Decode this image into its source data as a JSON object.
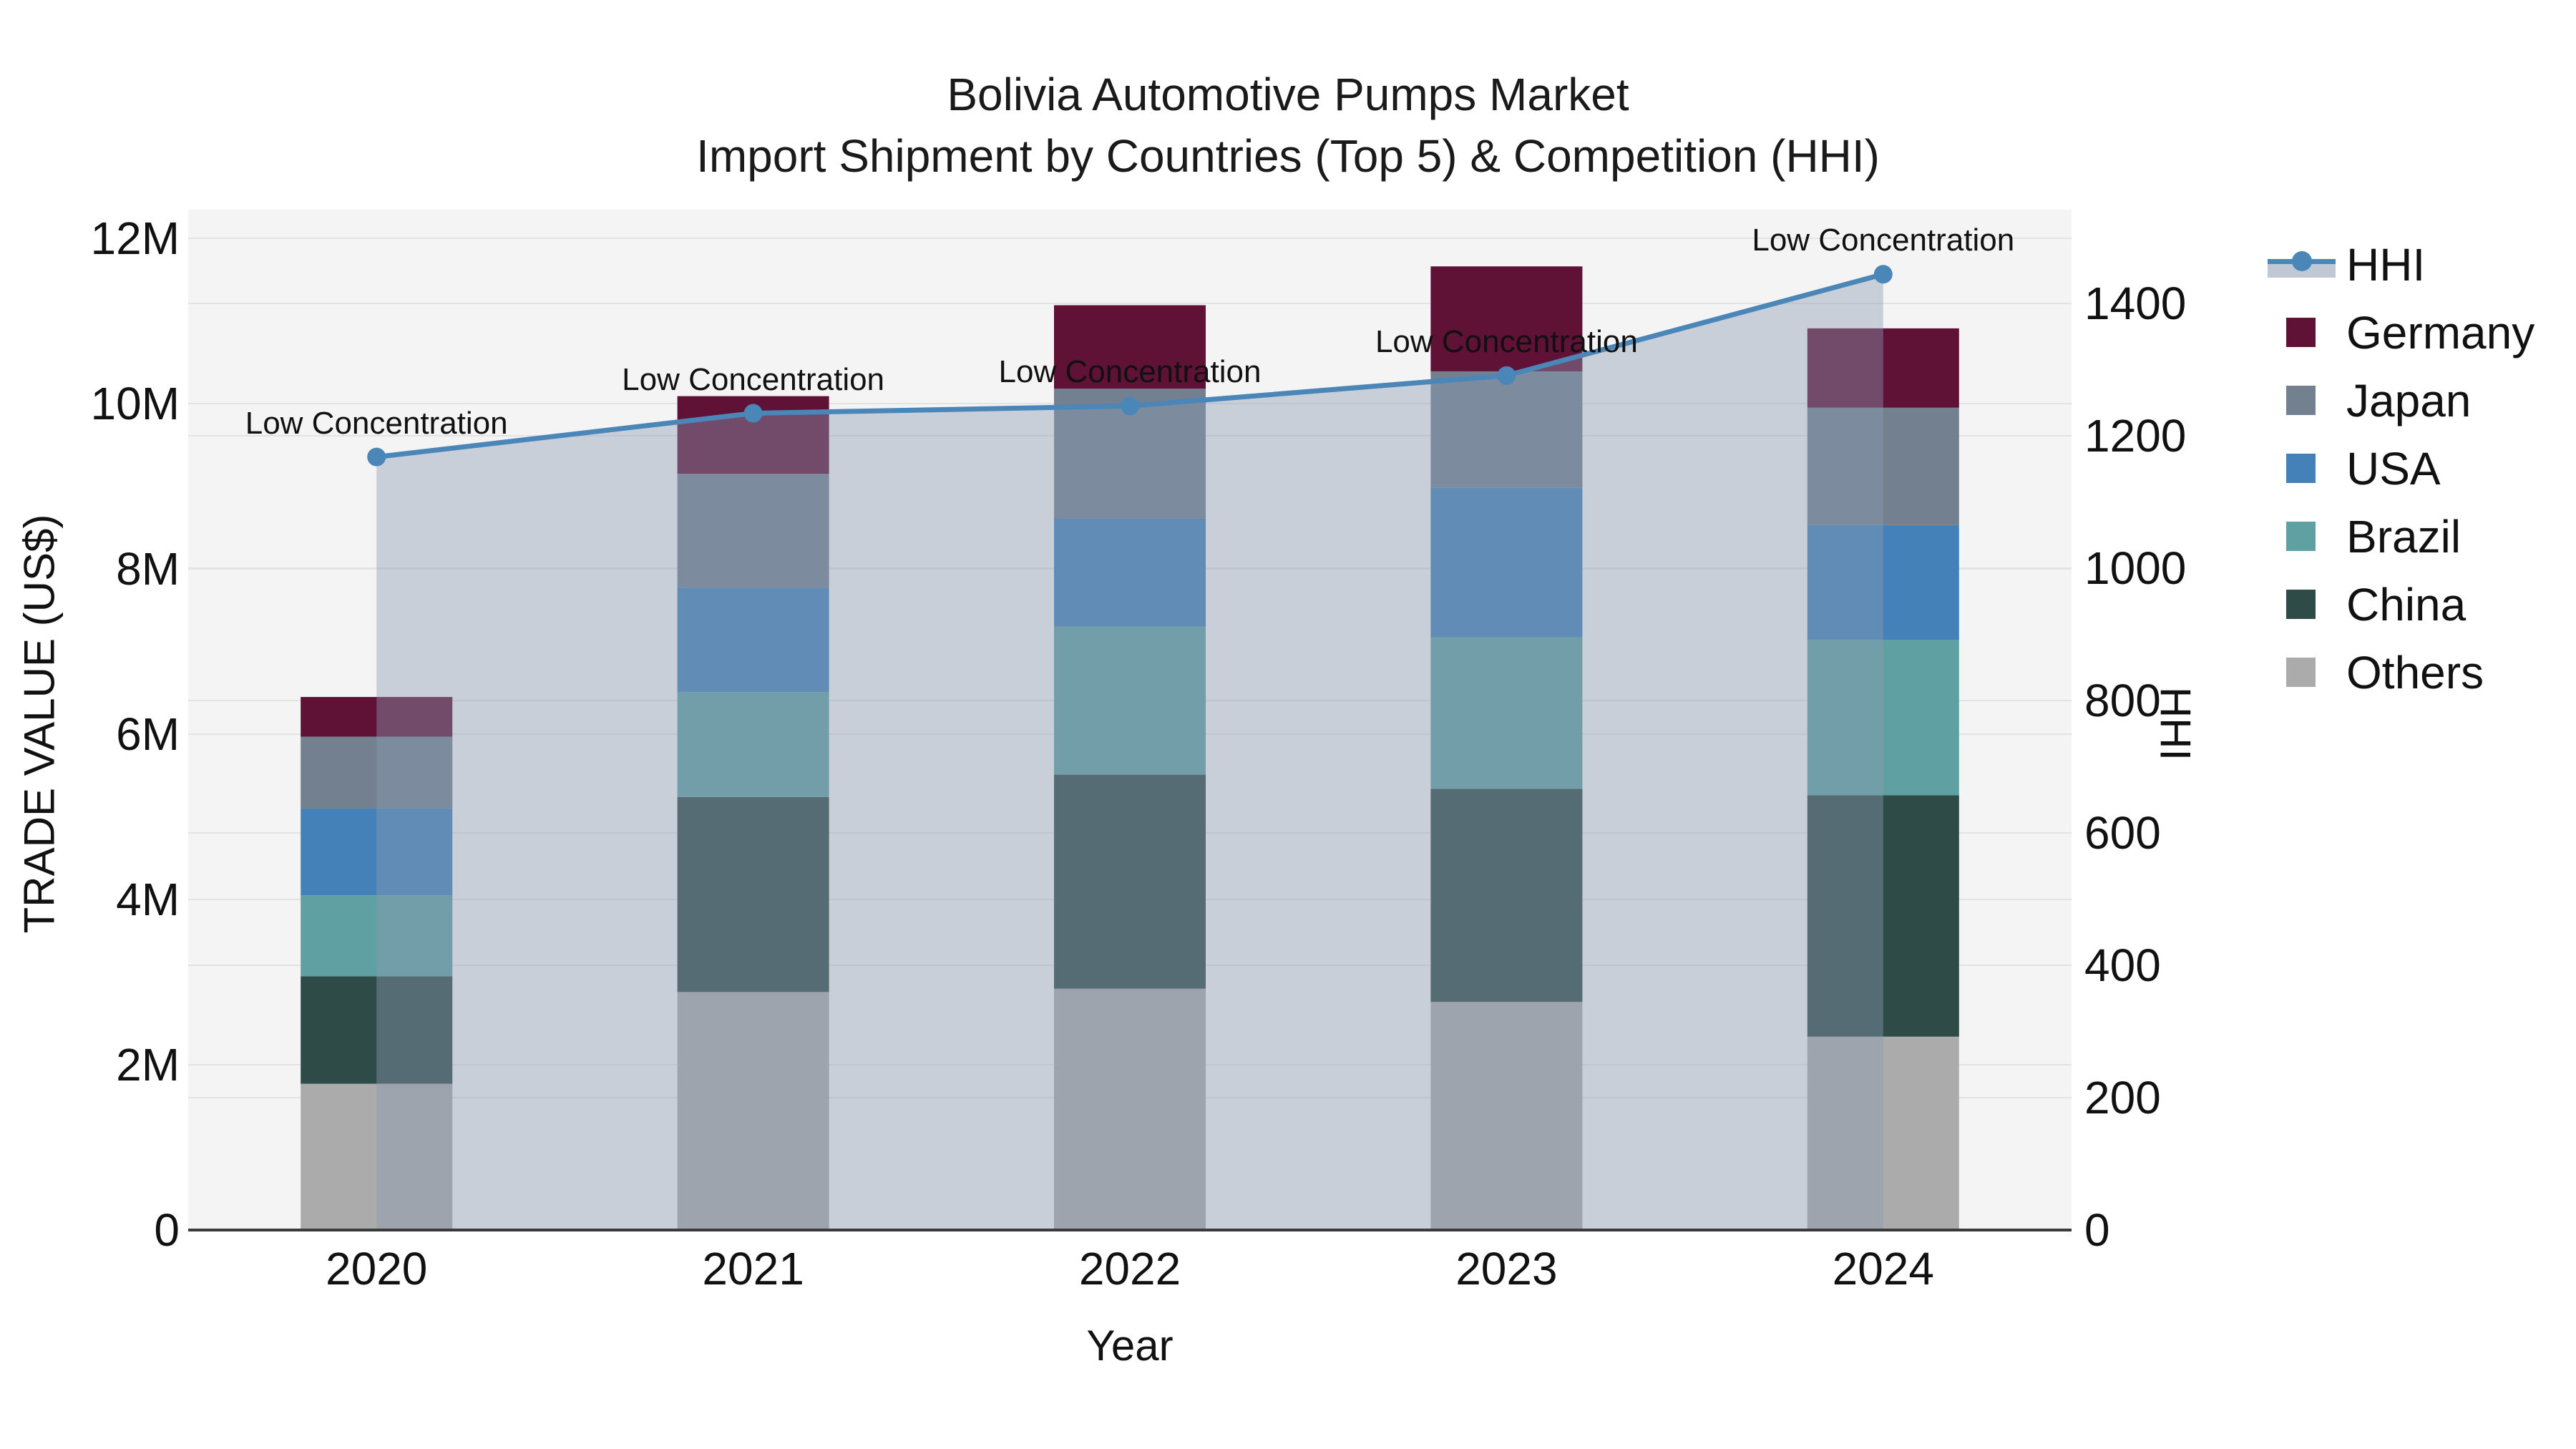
{
  "title": {
    "line1": "Bolivia Automotive Pumps Market",
    "line2": "Import Shipment by Countries (Top 5) & Competition (HHI)"
  },
  "axes": {
    "x_title": "Year",
    "y_left_title": "TRADE VALUE (US$)",
    "y_right_title": "HHI",
    "y_left_ticks": [
      {
        "label": "0",
        "value": 0
      },
      {
        "label": "2M",
        "value": 2000000
      },
      {
        "label": "4M",
        "value": 4000000
      },
      {
        "label": "6M",
        "value": 6000000
      },
      {
        "label": "8M",
        "value": 8000000
      },
      {
        "label": "10M",
        "value": 10000000
      },
      {
        "label": "12M",
        "value": 12000000
      }
    ],
    "y_right_ticks": [
      {
        "label": "0",
        "value": 0
      },
      {
        "label": "200",
        "value": 200
      },
      {
        "label": "400",
        "value": 400
      },
      {
        "label": "600",
        "value": 600
      },
      {
        "label": "800",
        "value": 800
      },
      {
        "label": "1000",
        "value": 1000
      },
      {
        "label": "1200",
        "value": 1200
      },
      {
        "label": "1400",
        "value": 1400
      }
    ]
  },
  "legend": {
    "items": [
      {
        "label": "HHI",
        "type": "line",
        "color": "#4A86B8"
      },
      {
        "label": "Germany",
        "type": "swatch",
        "color": "#5F1136"
      },
      {
        "label": "Japan",
        "type": "swatch",
        "color": "#72808F"
      },
      {
        "label": "USA",
        "type": "swatch",
        "color": "#4381B8"
      },
      {
        "label": "Brazil",
        "type": "swatch",
        "color": "#5FA0A2"
      },
      {
        "label": "China",
        "type": "swatch",
        "color": "#2E4B47"
      },
      {
        "label": "Others",
        "type": "swatch",
        "color": "#ABABAB"
      }
    ]
  },
  "chart_data": {
    "type": "bar",
    "subtype": "stacked-bars-with-line",
    "title": "Bolivia Automotive Pumps Market — Import Shipment by Countries (Top 5) & Competition (HHI)",
    "xlabel": "Year",
    "ylabel": "TRADE VALUE (US$)",
    "y2label": "HHI",
    "ylim": [
      0,
      12000000
    ],
    "y2lim": [
      0,
      1400
    ],
    "grid": true,
    "legend_position": "right",
    "categories": [
      "2020",
      "2021",
      "2022",
      "2023",
      "2024"
    ],
    "series": [
      {
        "name": "Others",
        "color": "#ABABAB",
        "values": [
          1770000,
          2880000,
          2920000,
          2760000,
          2340000
        ]
      },
      {
        "name": "China",
        "color": "#2E4B47",
        "values": [
          1300000,
          2360000,
          2590000,
          2580000,
          2920000
        ]
      },
      {
        "name": "Brazil",
        "color": "#5FA0A2",
        "values": [
          980000,
          1270000,
          1790000,
          1830000,
          1880000
        ]
      },
      {
        "name": "USA",
        "color": "#4381B8",
        "values": [
          1050000,
          1260000,
          1310000,
          1810000,
          1390000
        ]
      },
      {
        "name": "Japan",
        "color": "#72808F",
        "values": [
          870000,
          1380000,
          1570000,
          1410000,
          1420000
        ]
      },
      {
        "name": "Germany",
        "color": "#5F1136",
        "values": [
          480000,
          940000,
          1010000,
          1270000,
          960000
        ]
      }
    ],
    "bar_totals": [
      6450000,
      10090000,
      11190000,
      11660000,
      10910000
    ],
    "line_series": {
      "name": "HHI",
      "axis": "right",
      "color": "#4A86B8",
      "area_fill": "rgba(140,155,179,0.42)",
      "values": [
        1168,
        1234,
        1245,
        1291,
        1444
      ]
    },
    "point_labels": [
      "Low Concentration",
      "Low Concentration",
      "Low Concentration",
      "Low Concentration",
      "Low Concentration"
    ]
  },
  "colors": {
    "plot_background": "#F4F4F5",
    "figure_background": "#FFFFFF",
    "gridline": "#E3E3E6",
    "axis_line": "#3B3B3B",
    "text": "#111111",
    "hhi_line": "#4A86B8",
    "area_fill": "rgba(140,155,179,0.42)"
  }
}
